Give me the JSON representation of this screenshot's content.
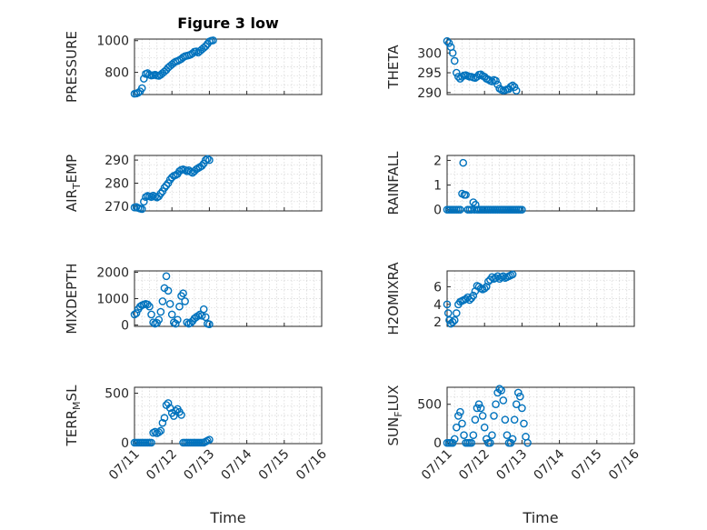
{
  "figure_title": "Figure 3 low",
  "colors": {
    "marker": "#0072BD",
    "axis": "#262626",
    "grid": "#d4d4d4"
  },
  "chart_data": [
    {
      "type": "scatter",
      "id": "pressure",
      "ylabel": "PRESSURE",
      "ylim": [
        660,
        1010
      ],
      "yticks": [
        800,
        1000
      ],
      "ytick_labels": [
        "800",
        "1000"
      ],
      "xlim": [
        0,
        5
      ],
      "points": [
        [
          0.0,
          665
        ],
        [
          0.05,
          667
        ],
        [
          0.1,
          672
        ],
        [
          0.15,
          680
        ],
        [
          0.2,
          700
        ],
        [
          0.25,
          760
        ],
        [
          0.3,
          790
        ],
        [
          0.35,
          795
        ],
        [
          0.4,
          785
        ],
        [
          0.45,
          780
        ],
        [
          0.5,
          782
        ],
        [
          0.55,
          785
        ],
        [
          0.6,
          780
        ],
        [
          0.65,
          778
        ],
        [
          0.7,
          785
        ],
        [
          0.75,
          795
        ],
        [
          0.8,
          805
        ],
        [
          0.85,
          815
        ],
        [
          0.9,
          830
        ],
        [
          0.95,
          840
        ],
        [
          1.0,
          850
        ],
        [
          1.05,
          860
        ],
        [
          1.1,
          868
        ],
        [
          1.15,
          872
        ],
        [
          1.2,
          878
        ],
        [
          1.25,
          885
        ],
        [
          1.3,
          895
        ],
        [
          1.35,
          902
        ],
        [
          1.4,
          905
        ],
        [
          1.45,
          908
        ],
        [
          1.5,
          912
        ],
        [
          1.55,
          920
        ],
        [
          1.6,
          930
        ],
        [
          1.65,
          932
        ],
        [
          1.7,
          925
        ],
        [
          1.75,
          935
        ],
        [
          1.8,
          945
        ],
        [
          1.85,
          955
        ],
        [
          1.9,
          965
        ],
        [
          1.95,
          980
        ],
        [
          2.0,
          995
        ],
        [
          2.05,
          1000
        ],
        [
          2.1,
          1002
        ]
      ]
    },
    {
      "type": "scatter",
      "id": "theta",
      "ylabel": "THETA",
      "ylim": [
        289.5,
        303.5
      ],
      "yticks": [
        290,
        295,
        300
      ],
      "ytick_labels": [
        "290",
        "295",
        "300"
      ],
      "xlim": [
        0,
        5
      ],
      "points": [
        [
          0.0,
          303
        ],
        [
          0.05,
          302.5
        ],
        [
          0.1,
          301.5
        ],
        [
          0.15,
          300
        ],
        [
          0.2,
          298
        ],
        [
          0.25,
          295
        ],
        [
          0.3,
          294
        ],
        [
          0.35,
          293.5
        ],
        [
          0.4,
          294
        ],
        [
          0.45,
          294.3
        ],
        [
          0.5,
          294.4
        ],
        [
          0.55,
          294.2
        ],
        [
          0.6,
          294
        ],
        [
          0.65,
          294
        ],
        [
          0.7,
          293.8
        ],
        [
          0.75,
          293.7
        ],
        [
          0.8,
          294
        ],
        [
          0.85,
          294.5
        ],
        [
          0.9,
          294.6
        ],
        [
          0.95,
          294.2
        ],
        [
          1.0,
          294
        ],
        [
          1.05,
          293.5
        ],
        [
          1.1,
          293.3
        ],
        [
          1.15,
          293
        ],
        [
          1.2,
          292.8
        ],
        [
          1.25,
          293.2
        ],
        [
          1.3,
          293
        ],
        [
          1.35,
          292
        ],
        [
          1.4,
          291
        ],
        [
          1.45,
          290.7
        ],
        [
          1.5,
          290.5
        ],
        [
          1.55,
          290.6
        ],
        [
          1.6,
          290.8
        ],
        [
          1.65,
          290.9
        ],
        [
          1.7,
          291.5
        ],
        [
          1.75,
          291.8
        ],
        [
          1.8,
          291.4
        ],
        [
          1.85,
          290.5
        ]
      ]
    },
    {
      "type": "scatter",
      "id": "air_temp",
      "ylabel": "AIR_TEMP",
      "ylim": [
        268,
        292
      ],
      "yticks": [
        270,
        280,
        290
      ],
      "ytick_labels": [
        "270",
        "280",
        "290"
      ],
      "xlim": [
        0,
        5
      ],
      "points": [
        [
          0.0,
          269.5
        ],
        [
          0.05,
          269.7
        ],
        [
          0.1,
          269.3
        ],
        [
          0.15,
          269
        ],
        [
          0.2,
          268.8
        ],
        [
          0.25,
          272
        ],
        [
          0.3,
          274
        ],
        [
          0.35,
          274.5
        ],
        [
          0.4,
          274.3
        ],
        [
          0.45,
          274
        ],
        [
          0.5,
          274.6
        ],
        [
          0.55,
          274.2
        ],
        [
          0.6,
          273.8
        ],
        [
          0.65,
          274.3
        ],
        [
          0.7,
          275.5
        ],
        [
          0.75,
          276.5
        ],
        [
          0.8,
          278
        ],
        [
          0.85,
          279
        ],
        [
          0.9,
          280
        ],
        [
          0.95,
          281.5
        ],
        [
          1.0,
          282.5
        ],
        [
          1.05,
          283.2
        ],
        [
          1.1,
          283.5
        ],
        [
          1.15,
          284
        ],
        [
          1.2,
          285.2
        ],
        [
          1.25,
          285.8
        ],
        [
          1.3,
          286
        ],
        [
          1.35,
          285.7
        ],
        [
          1.4,
          285.2
        ],
        [
          1.45,
          285.6
        ],
        [
          1.5,
          285
        ],
        [
          1.55,
          284.5
        ],
        [
          1.6,
          285.2
        ],
        [
          1.65,
          286
        ],
        [
          1.7,
          286.5
        ],
        [
          1.75,
          287
        ],
        [
          1.8,
          287.5
        ],
        [
          1.85,
          288.5
        ],
        [
          1.9,
          290
        ],
        [
          1.95,
          290.5
        ],
        [
          2.0,
          290
        ]
      ]
    },
    {
      "type": "scatter",
      "id": "rainfall",
      "ylabel": "RAINFALL",
      "ylim": [
        -0.05,
        2.2
      ],
      "yticks": [
        0,
        1,
        2
      ],
      "ytick_labels": [
        "0",
        "1",
        "2"
      ],
      "xlim": [
        0,
        5
      ],
      "points": [
        [
          0.0,
          0
        ],
        [
          0.05,
          0
        ],
        [
          0.1,
          0
        ],
        [
          0.15,
          0
        ],
        [
          0.2,
          0
        ],
        [
          0.25,
          0
        ],
        [
          0.3,
          0
        ],
        [
          0.35,
          0
        ],
        [
          0.4,
          0.65
        ],
        [
          0.43,
          1.9
        ],
        [
          0.46,
          0.6
        ],
        [
          0.5,
          0.6
        ],
        [
          0.55,
          0
        ],
        [
          0.6,
          0
        ],
        [
          0.65,
          0
        ],
        [
          0.7,
          0.3
        ],
        [
          0.73,
          0
        ],
        [
          0.76,
          0.2
        ],
        [
          0.8,
          0
        ],
        [
          0.85,
          0
        ],
        [
          0.9,
          0
        ],
        [
          0.95,
          0
        ],
        [
          1.0,
          0
        ],
        [
          1.05,
          0
        ],
        [
          1.1,
          0
        ],
        [
          1.15,
          0
        ],
        [
          1.2,
          0
        ],
        [
          1.25,
          0
        ],
        [
          1.3,
          0
        ],
        [
          1.35,
          0
        ],
        [
          1.4,
          0
        ],
        [
          1.45,
          0
        ],
        [
          1.5,
          0
        ],
        [
          1.55,
          0
        ],
        [
          1.6,
          0
        ],
        [
          1.65,
          0
        ],
        [
          1.7,
          0
        ],
        [
          1.75,
          0
        ],
        [
          1.8,
          0
        ],
        [
          1.85,
          0
        ],
        [
          1.9,
          0
        ],
        [
          1.95,
          0
        ],
        [
          2.0,
          0
        ]
      ]
    },
    {
      "type": "scatter",
      "id": "mixdepth",
      "ylabel": "MIXDEPTH",
      "ylim": [
        -50,
        2050
      ],
      "yticks": [
        0,
        1000,
        2000
      ],
      "ytick_labels": [
        "0",
        "1000",
        "2000"
      ],
      "xlim": [
        0,
        5
      ],
      "points": [
        [
          0.0,
          400
        ],
        [
          0.05,
          450
        ],
        [
          0.1,
          600
        ],
        [
          0.15,
          700
        ],
        [
          0.2,
          750
        ],
        [
          0.25,
          780
        ],
        [
          0.3,
          800
        ],
        [
          0.35,
          780
        ],
        [
          0.4,
          700
        ],
        [
          0.45,
          400
        ],
        [
          0.5,
          100
        ],
        [
          0.55,
          50
        ],
        [
          0.6,
          80
        ],
        [
          0.65,
          200
        ],
        [
          0.7,
          500
        ],
        [
          0.75,
          900
        ],
        [
          0.8,
          1400
        ],
        [
          0.85,
          1850
        ],
        [
          0.9,
          1300
        ],
        [
          0.95,
          800
        ],
        [
          1.0,
          400
        ],
        [
          1.05,
          100
        ],
        [
          1.1,
          50
        ],
        [
          1.15,
          200
        ],
        [
          1.2,
          700
        ],
        [
          1.25,
          1100
        ],
        [
          1.3,
          1200
        ],
        [
          1.35,
          900
        ],
        [
          1.4,
          100
        ],
        [
          1.45,
          50
        ],
        [
          1.5,
          80
        ],
        [
          1.55,
          150
        ],
        [
          1.6,
          250
        ],
        [
          1.65,
          300
        ],
        [
          1.7,
          350
        ],
        [
          1.75,
          400
        ],
        [
          1.8,
          350
        ],
        [
          1.85,
          600
        ],
        [
          1.9,
          300
        ],
        [
          1.95,
          50
        ],
        [
          2.0,
          30
        ]
      ]
    },
    {
      "type": "scatter",
      "id": "h2omixra",
      "ylabel": "H2OMIXRA",
      "ylim": [
        1.5,
        7.8
      ],
      "yticks": [
        2,
        4,
        6
      ],
      "ytick_labels": [
        "2",
        "4",
        "6"
      ],
      "xlim": [
        0,
        5
      ],
      "points": [
        [
          0.0,
          4
        ],
        [
          0.03,
          3
        ],
        [
          0.06,
          2.2
        ],
        [
          0.1,
          1.8
        ],
        [
          0.15,
          2
        ],
        [
          0.2,
          2.2
        ],
        [
          0.25,
          3
        ],
        [
          0.3,
          4
        ],
        [
          0.35,
          4.3
        ],
        [
          0.4,
          4.4
        ],
        [
          0.45,
          4.5
        ],
        [
          0.5,
          4.6
        ],
        [
          0.55,
          4.8
        ],
        [
          0.6,
          4.5
        ],
        [
          0.65,
          4.7
        ],
        [
          0.7,
          5
        ],
        [
          0.75,
          5.5
        ],
        [
          0.8,
          6.1
        ],
        [
          0.85,
          6
        ],
        [
          0.9,
          5.8
        ],
        [
          0.95,
          5.7
        ],
        [
          1.0,
          5.8
        ],
        [
          1.05,
          6
        ],
        [
          1.1,
          6.6
        ],
        [
          1.15,
          6.8
        ],
        [
          1.2,
          7.1
        ],
        [
          1.25,
          6.9
        ],
        [
          1.3,
          7.0
        ],
        [
          1.35,
          7.2
        ],
        [
          1.4,
          6.9
        ],
        [
          1.45,
          7.1
        ],
        [
          1.5,
          7.2
        ],
        [
          1.55,
          7.0
        ],
        [
          1.6,
          7.1
        ],
        [
          1.65,
          7.2
        ],
        [
          1.7,
          7.3
        ],
        [
          1.75,
          7.4
        ]
      ]
    },
    {
      "type": "scatter",
      "id": "terr_msl",
      "ylabel": "TERR_MSL",
      "ylim": [
        -10,
        560
      ],
      "yticks": [
        0,
        500
      ],
      "ytick_labels": [
        "0",
        "500"
      ],
      "xlim": [
        0,
        5
      ],
      "points": [
        [
          0.0,
          0
        ],
        [
          0.05,
          0
        ],
        [
          0.1,
          0
        ],
        [
          0.15,
          0
        ],
        [
          0.2,
          0
        ],
        [
          0.25,
          0
        ],
        [
          0.3,
          0
        ],
        [
          0.35,
          0
        ],
        [
          0.4,
          0
        ],
        [
          0.45,
          0
        ],
        [
          0.5,
          100
        ],
        [
          0.55,
          110
        ],
        [
          0.6,
          95
        ],
        [
          0.65,
          105
        ],
        [
          0.7,
          120
        ],
        [
          0.75,
          200
        ],
        [
          0.8,
          250
        ],
        [
          0.85,
          380
        ],
        [
          0.9,
          400
        ],
        [
          0.95,
          350
        ],
        [
          1.0,
          300
        ],
        [
          1.05,
          270
        ],
        [
          1.1,
          320
        ],
        [
          1.15,
          340
        ],
        [
          1.2,
          310
        ],
        [
          1.25,
          280
        ],
        [
          1.3,
          0
        ],
        [
          1.35,
          0
        ],
        [
          1.4,
          0
        ],
        [
          1.45,
          0
        ],
        [
          1.5,
          0
        ],
        [
          1.55,
          0
        ],
        [
          1.6,
          0
        ],
        [
          1.65,
          0
        ],
        [
          1.7,
          0
        ],
        [
          1.75,
          0
        ],
        [
          1.8,
          0
        ],
        [
          1.85,
          0
        ],
        [
          1.9,
          10
        ],
        [
          1.95,
          20
        ],
        [
          2.0,
          30
        ]
      ]
    },
    {
      "type": "scatter",
      "id": "sun_flux",
      "ylabel": "SUN_FLUX",
      "ylim": [
        -10,
        720
      ],
      "yticks": [
        0,
        500
      ],
      "ytick_labels": [
        "0",
        "500"
      ],
      "xlim": [
        0,
        5
      ],
      "points": [
        [
          0.0,
          0
        ],
        [
          0.05,
          0
        ],
        [
          0.1,
          0
        ],
        [
          0.15,
          0
        ],
        [
          0.2,
          50
        ],
        [
          0.25,
          200
        ],
        [
          0.3,
          350
        ],
        [
          0.35,
          400
        ],
        [
          0.4,
          250
        ],
        [
          0.45,
          100
        ],
        [
          0.5,
          0
        ],
        [
          0.55,
          0
        ],
        [
          0.6,
          0
        ],
        [
          0.65,
          0
        ],
        [
          0.7,
          100
        ],
        [
          0.75,
          300
        ],
        [
          0.8,
          450
        ],
        [
          0.85,
          500
        ],
        [
          0.9,
          450
        ],
        [
          0.95,
          350
        ],
        [
          1.0,
          200
        ],
        [
          1.05,
          50
        ],
        [
          1.1,
          0
        ],
        [
          1.15,
          0
        ],
        [
          1.2,
          100
        ],
        [
          1.25,
          350
        ],
        [
          1.3,
          500
        ],
        [
          1.35,
          650
        ],
        [
          1.4,
          700
        ],
        [
          1.45,
          680
        ],
        [
          1.5,
          550
        ],
        [
          1.55,
          300
        ],
        [
          1.6,
          100
        ],
        [
          1.65,
          0
        ],
        [
          1.7,
          0
        ],
        [
          1.75,
          50
        ],
        [
          1.8,
          300
        ],
        [
          1.85,
          500
        ],
        [
          1.9,
          650
        ],
        [
          1.95,
          600
        ],
        [
          2.0,
          450
        ],
        [
          2.05,
          250
        ],
        [
          2.1,
          80
        ],
        [
          2.15,
          0
        ]
      ]
    }
  ],
  "x_axis": {
    "xlabel": "Time",
    "tick_labels": [
      "07/11",
      "07/12",
      "07/13",
      "07/14",
      "07/15",
      "07/16"
    ]
  }
}
